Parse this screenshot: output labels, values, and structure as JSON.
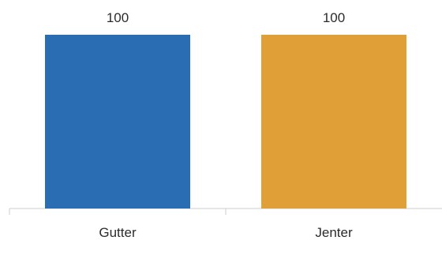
{
  "chart_data": {
    "type": "bar",
    "title": "",
    "xlabel": "",
    "ylabel": "",
    "categories": [
      "Gutter",
      "Jenter"
    ],
    "values": [
      100,
      100
    ],
    "value_labels": [
      "100",
      "100"
    ],
    "colors": [
      "#2a6db3",
      "#e09f37"
    ],
    "ylim": [
      0,
      100
    ],
    "grid": false,
    "legend": "none",
    "axis_color": "#cccccc"
  }
}
